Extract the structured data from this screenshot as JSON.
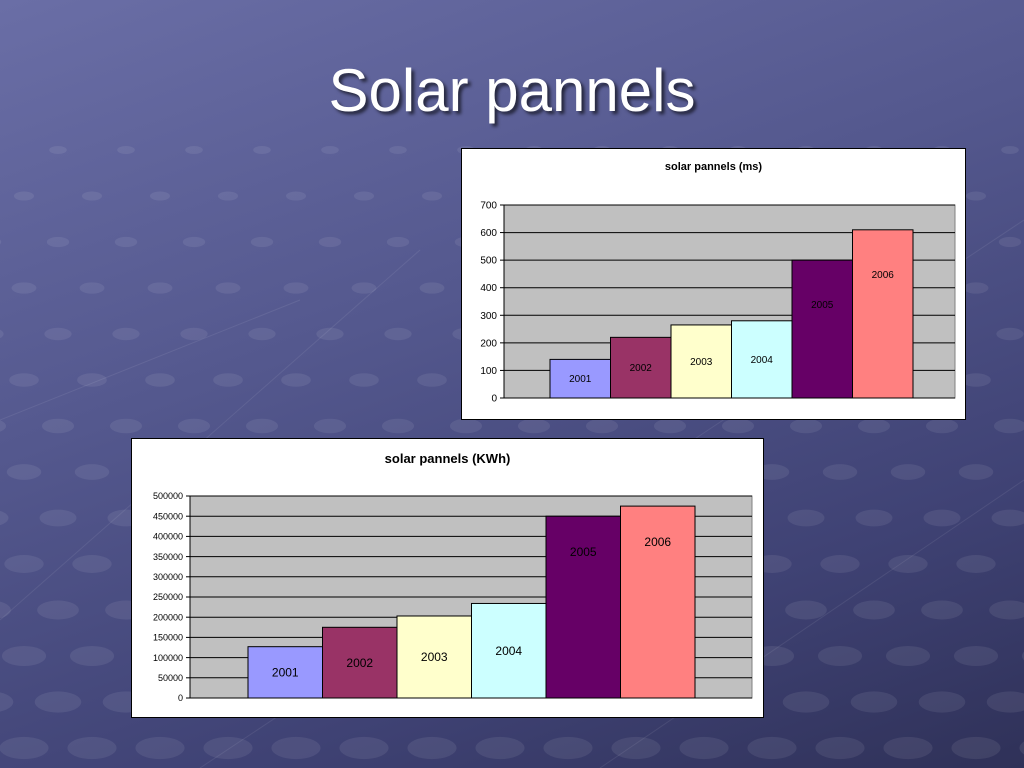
{
  "slide": {
    "title": "Solar pannels"
  },
  "colors": {
    "series": [
      "#9999ff",
      "#993366",
      "#ffffcc",
      "#ccffff",
      "#660066",
      "#ff8080"
    ],
    "plot_bg": "#c0c0c0"
  },
  "chart_data": [
    {
      "type": "bar",
      "title": "solar pannels (ms)",
      "categories": [
        "2001",
        "2002",
        "2003",
        "2004",
        "2005",
        "2006"
      ],
      "values": [
        140,
        220,
        265,
        280,
        500,
        610
      ],
      "ylim": [
        0,
        700
      ],
      "yticks": [
        "0",
        "100",
        "200",
        "300",
        "400",
        "500",
        "600",
        "700"
      ],
      "grid": true,
      "legend": "none",
      "data_labels": "category"
    },
    {
      "type": "bar",
      "title": "solar pannels (KWh)",
      "categories": [
        "2001",
        "2002",
        "2003",
        "2004",
        "2005",
        "2006"
      ],
      "values": [
        127000,
        175000,
        203000,
        234000,
        450000,
        475000
      ],
      "ylim": [
        0,
        500000
      ],
      "yticks": [
        "0",
        "50000",
        "100000",
        "150000",
        "200000",
        "250000",
        "300000",
        "350000",
        "400000",
        "450000",
        "500000"
      ],
      "grid": true,
      "legend": "none",
      "data_labels": "category"
    }
  ]
}
